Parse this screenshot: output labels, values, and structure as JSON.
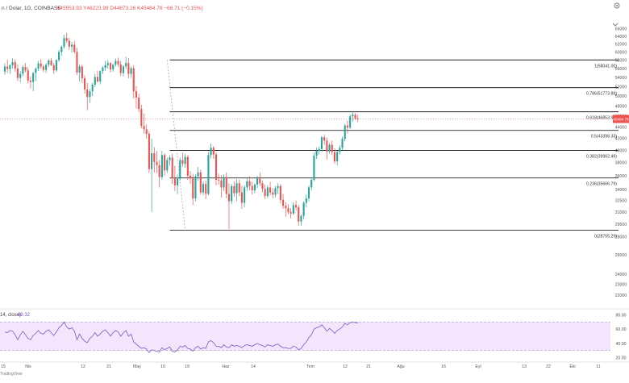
{
  "header": {
    "symbol_text": "n / Dolar, 1G, COINBASE",
    "ohlc_text": "A45553.93  Y46223.99  D44873.26  K45484.78  −68.71 (−0.15%)"
  },
  "colors": {
    "up": "#26a69a",
    "down": "#ef5350",
    "fib_line": "#000000",
    "rsi_line": "#7e57c2",
    "rsi_band": "#f3e5fc",
    "price_label": "#ef5350"
  },
  "chart_data": [
    {
      "type": "candlestick",
      "title": "",
      "x_ticks": [
        "15",
        "Nis",
        "12",
        "21",
        "May",
        "10",
        "19",
        "Haz",
        "14",
        "Tem",
        "12",
        "21",
        "Ağu",
        "16",
        "Eyl",
        "13",
        "22",
        "Eki",
        "11"
      ],
      "y_ticks": [
        "66000",
        "64000",
        "62000",
        "60000",
        "58000",
        "56000",
        "54000",
        "52000",
        "50000",
        "48000",
        "46000",
        "44000",
        "42000",
        "40000",
        "38000",
        "36000",
        "34000",
        "32500",
        "31000",
        "29500",
        "28000",
        "26000",
        "24000",
        "23000",
        "22000"
      ],
      "ylim": [
        21000,
        70000
      ],
      "scale": "log",
      "last_price_label": "45484.78",
      "fib_levels": [
        {
          "label": "1(58041.00)",
          "value": 58041
        },
        {
          "label": "0.786(51773.88)",
          "value": 51773.88
        },
        {
          "label": "0.618(46853.90)",
          "value": 46853.9
        },
        {
          "label": "0.5(43398.33)",
          "value": 43398.33
        },
        {
          "label": "0.382(39962.49)",
          "value": 39962.49
        },
        {
          "label": "0.236(35666.79)",
          "value": 35666.79
        },
        {
          "label": "0(28755.29)",
          "value": 28755.29
        }
      ],
      "ohlc": [
        [
          55300,
          57200,
          54600,
          56500
        ],
        [
          56500,
          58100,
          55000,
          55900
        ],
        [
          55900,
          57000,
          54800,
          56800
        ],
        [
          56800,
          58400,
          56000,
          57500
        ],
        [
          57500,
          58200,
          55300,
          56000
        ],
        [
          56000,
          57000,
          53200,
          53900
        ],
        [
          53900,
          55400,
          52900,
          54800
        ],
        [
          54800,
          56800,
          54300,
          56400
        ],
        [
          56400,
          57300,
          55100,
          55600
        ],
        [
          55600,
          56300,
          52700,
          53300
        ],
        [
          53300,
          54200,
          51600,
          53000
        ],
        [
          53000,
          55200,
          51000,
          55000
        ],
        [
          55000,
          56300,
          53200,
          56000
        ],
        [
          56000,
          57800,
          55500,
          57200
        ],
        [
          57200,
          58200,
          56000,
          56500
        ],
        [
          56500,
          56900,
          55200,
          55700
        ],
        [
          55700,
          57300,
          55000,
          56900
        ],
        [
          56900,
          58300,
          56400,
          57900
        ],
        [
          57900,
          58500,
          56600,
          56800
        ],
        [
          56800,
          57300,
          54800,
          55600
        ],
        [
          55600,
          58200,
          55200,
          58000
        ],
        [
          58000,
          60500,
          57600,
          60000
        ],
        [
          60000,
          61600,
          59000,
          61300
        ],
        [
          61300,
          64400,
          60800,
          63500
        ],
        [
          63500,
          64900,
          62300,
          62800
        ],
        [
          62800,
          63600,
          60500,
          61300
        ],
        [
          61300,
          62500,
          59800,
          61800
        ],
        [
          61800,
          62800,
          59600,
          60000
        ],
        [
          60000,
          61000,
          54500,
          55100
        ],
        [
          55100,
          57000,
          53100,
          56500
        ],
        [
          56500,
          56900,
          52800,
          53800
        ],
        [
          53800,
          54500,
          50500,
          51400
        ],
        [
          51400,
          52800,
          47200,
          49800
        ],
        [
          49800,
          51500,
          48600,
          51000
        ],
        [
          51000,
          52800,
          50000,
          52400
        ],
        [
          52400,
          54800,
          51900,
          54100
        ],
        [
          54100,
          55500,
          52800,
          53100
        ],
        [
          53100,
          55600,
          52500,
          55400
        ],
        [
          55400,
          56600,
          54800,
          56200
        ],
        [
          56200,
          57800,
          55500,
          56800
        ],
        [
          56800,
          58000,
          56000,
          57300
        ],
        [
          57300,
          57500,
          55100,
          55800
        ],
        [
          55800,
          57200,
          55300,
          56900
        ],
        [
          56900,
          58400,
          56500,
          57800
        ],
        [
          57800,
          58600,
          56400,
          57000
        ],
        [
          57000,
          57800,
          54300,
          55000
        ],
        [
          55000,
          56800,
          54200,
          56500
        ],
        [
          56500,
          58800,
          55900,
          57300
        ],
        [
          57300,
          58500,
          53800,
          54800
        ],
        [
          54800,
          56500,
          53900,
          56100
        ],
        [
          56100,
          56800,
          49500,
          51000
        ],
        [
          51000,
          52100,
          47500,
          49700
        ],
        [
          49700,
          50500,
          46800,
          47400
        ],
        [
          47400,
          48200,
          43800,
          44200
        ],
        [
          44200,
          46500,
          42800,
          43600
        ],
        [
          43600,
          44500,
          42000,
          42800
        ],
        [
          42800,
          43200,
          36400,
          37000
        ],
        [
          37000,
          41900,
          31000,
          39500
        ],
        [
          39500,
          40500,
          36500,
          38100
        ],
        [
          38100,
          39900,
          36400,
          37600
        ],
        [
          37600,
          38400,
          34300,
          35800
        ],
        [
          35800,
          39900,
          35400,
          39200
        ],
        [
          39200,
          39500,
          36000,
          36800
        ],
        [
          36800,
          38800,
          36400,
          38400
        ],
        [
          38400,
          39200,
          37500,
          38800
        ],
        [
          38800,
          39400,
          34800,
          35600
        ],
        [
          35600,
          37500,
          33800,
          34600
        ],
        [
          34600,
          36200,
          33400,
          35700
        ],
        [
          35700,
          38800,
          35300,
          38400
        ],
        [
          38400,
          39600,
          37400,
          37800
        ],
        [
          37800,
          39400,
          37200,
          38900
        ],
        [
          38900,
          39200,
          35400,
          36000
        ],
        [
          36000,
          36700,
          34800,
          35600
        ],
        [
          35600,
          36300,
          31900,
          32800
        ],
        [
          32800,
          36200,
          32400,
          35900
        ],
        [
          35900,
          37300,
          35300,
          36500
        ],
        [
          36500,
          36900,
          33300,
          33600
        ],
        [
          33600,
          35200,
          33200,
          34800
        ],
        [
          34800,
          35300,
          32700,
          33400
        ],
        [
          33400,
          39700,
          33200,
          39200
        ],
        [
          39200,
          41100,
          38700,
          40400
        ],
        [
          40400,
          40700,
          38600,
          39300
        ],
        [
          39300,
          39700,
          34600,
          35400
        ],
        [
          35400,
          36300,
          34700,
          35300
        ],
        [
          35300,
          36100,
          32900,
          34300
        ],
        [
          34300,
          36200,
          33800,
          35800
        ],
        [
          35800,
          36500,
          32800,
          33400
        ],
        [
          33400,
          34900,
          28900,
          32400
        ],
        [
          32400,
          34800,
          32000,
          34500
        ],
        [
          34500,
          35200,
          33000,
          33500
        ],
        [
          33500,
          35500,
          32400,
          34900
        ],
        [
          34900,
          35400,
          33100,
          33600
        ],
        [
          33600,
          34500,
          31400,
          32200
        ],
        [
          32200,
          34600,
          31600,
          34300
        ],
        [
          34300,
          35800,
          33800,
          35200
        ],
        [
          35200,
          35900,
          33900,
          34500
        ],
        [
          34500,
          35100,
          33300,
          33900
        ],
        [
          33900,
          34900,
          33500,
          34700
        ],
        [
          34700,
          36000,
          34200,
          35600
        ],
        [
          35600,
          36500,
          34500,
          34900
        ],
        [
          34900,
          35300,
          33600,
          34100
        ],
        [
          34100,
          34700,
          32700,
          33100
        ],
        [
          33100,
          34600,
          32800,
          34300
        ],
        [
          34300,
          35100,
          33200,
          33600
        ],
        [
          33600,
          34200,
          32800,
          33300
        ],
        [
          33300,
          34500,
          32900,
          34200
        ],
        [
          34200,
          34900,
          33400,
          34500
        ],
        [
          34500,
          34800,
          32100,
          32600
        ],
        [
          32600,
          33400,
          31400,
          31800
        ],
        [
          31800,
          32300,
          30400,
          31500
        ],
        [
          31500,
          32000,
          30700,
          31000
        ],
        [
          31000,
          31500,
          30200,
          30800
        ],
        [
          30800,
          32300,
          30600,
          31900
        ],
        [
          31900,
          32500,
          31200,
          31600
        ],
        [
          31600,
          31900,
          29300,
          29800
        ],
        [
          29800,
          30700,
          29300,
          30500
        ],
        [
          30500,
          32400,
          30100,
          32200
        ],
        [
          32200,
          33300,
          31600,
          32800
        ],
        [
          32800,
          34600,
          32400,
          34300
        ],
        [
          34300,
          35600,
          33900,
          35400
        ],
        [
          35400,
          39600,
          35200,
          39100
        ],
        [
          39100,
          40400,
          38600,
          39900
        ],
        [
          39900,
          40600,
          39300,
          40200
        ],
        [
          40200,
          42400,
          39800,
          42200
        ],
        [
          42200,
          42600,
          40900,
          41600
        ],
        [
          41600,
          42100,
          38500,
          39800
        ],
        [
          39800,
          41200,
          39400,
          40900
        ],
        [
          40900,
          41600,
          39200,
          39700
        ],
        [
          39700,
          40300,
          37800,
          38200
        ],
        [
          38200,
          39900,
          37600,
          39700
        ],
        [
          39700,
          40800,
          39300,
          40400
        ],
        [
          40400,
          42300,
          40000,
          41900
        ],
        [
          41900,
          44600,
          41500,
          44300
        ],
        [
          44300,
          45200,
          42800,
          43900
        ],
        [
          43900,
          46300,
          43700,
          46000
        ],
        [
          46000,
          46900,
          45000,
          46300
        ],
        [
          46300,
          46600,
          45300,
          45600
        ],
        [
          45600,
          46300,
          44900,
          45500
        ]
      ]
    },
    {
      "type": "line",
      "title": "",
      "indicator_label": "14, close)",
      "last_value": "69.32",
      "y_ticks": [
        "80.00",
        "60.00",
        "40.00",
        "20.00"
      ],
      "ylim": [
        15,
        85
      ],
      "band": [
        30,
        70
      ],
      "values": [
        56,
        55,
        58,
        57,
        52,
        45,
        52,
        57,
        52,
        47,
        45,
        51,
        54,
        58,
        54,
        53,
        57,
        59,
        55,
        51,
        56,
        62,
        65,
        70,
        63,
        60,
        62,
        57,
        45,
        53,
        47,
        43,
        41,
        47,
        50,
        55,
        50,
        53,
        57,
        59,
        55,
        50,
        55,
        58,
        56,
        50,
        55,
        58,
        50,
        53,
        42,
        39,
        36,
        33,
        34,
        32,
        27,
        31,
        30,
        29,
        28,
        34,
        31,
        33,
        35,
        29,
        28,
        31,
        36,
        35,
        37,
        33,
        32,
        29,
        34,
        36,
        32,
        34,
        33,
        42,
        44,
        41,
        36,
        36,
        34,
        38,
        35,
        34,
        38,
        36,
        37,
        36,
        34,
        37,
        38,
        37,
        36,
        38,
        40,
        38,
        37,
        35,
        38,
        37,
        36,
        38,
        39,
        36,
        34,
        34,
        33,
        33,
        36,
        35,
        31,
        33,
        38,
        42,
        48,
        52,
        60,
        62,
        63,
        66,
        62,
        57,
        61,
        58,
        54,
        58,
        60,
        63,
        68,
        66,
        69,
        70,
        69,
        69
      ]
    }
  ]
}
